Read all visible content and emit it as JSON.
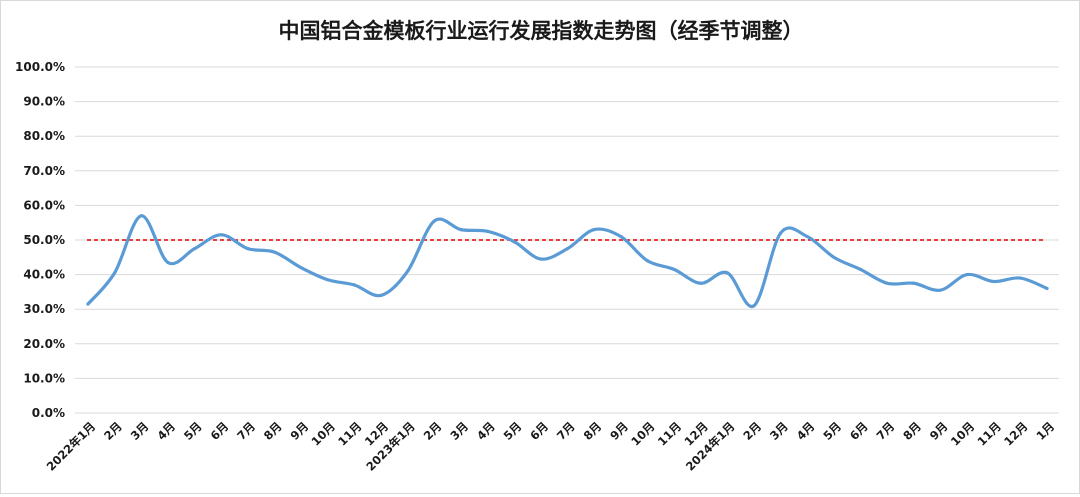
{
  "chart_data": {
    "type": "line",
    "title": "中国铝合金模板行业运行发展指数走势图（经季节调整）",
    "ylim": [
      0,
      100
    ],
    "y_ticks": [
      "0.0%",
      "10.0%",
      "20.0%",
      "30.0%",
      "40.0%",
      "50.0%",
      "60.0%",
      "70.0%",
      "80.0%",
      "90.0%",
      "100.0%"
    ],
    "y_tick_values": [
      0,
      10,
      20,
      30,
      40,
      50,
      60,
      70,
      80,
      90,
      100
    ],
    "categories": [
      "2022年1月",
      "2月",
      "3月",
      "4月",
      "5月",
      "6月",
      "7月",
      "8月",
      "9月",
      "10月",
      "11月",
      "12月",
      "2023年1月",
      "2月",
      "3月",
      "4月",
      "5月",
      "6月",
      "7月",
      "8月",
      "9月",
      "10月",
      "11月",
      "12月",
      "2024年1月",
      "2月",
      "3月",
      "4月",
      "5月",
      "6月",
      "7月",
      "8月",
      "9月",
      "10月",
      "11月",
      "12月",
      "1月"
    ],
    "series": [
      {
        "color": "#5b9bd5",
        "values": [
          31.5,
          40.5,
          57.0,
          43.5,
          47.5,
          51.5,
          47.5,
          46.5,
          42.0,
          38.5,
          37.0,
          34.0,
          41.0,
          55.5,
          53.0,
          52.5,
          49.5,
          44.5,
          47.5,
          53.0,
          51.0,
          44.0,
          41.5,
          37.5,
          40.5,
          31.0,
          52.0,
          51.0,
          45.0,
          41.5,
          37.5,
          37.5,
          35.5,
          40.0,
          38.0,
          39.0,
          36.0
        ]
      }
    ],
    "reference_line": {
      "value": 50,
      "color": "#e00000",
      "style": "dashed"
    },
    "grid": true,
    "gridline_color": "#d9d9d9"
  }
}
